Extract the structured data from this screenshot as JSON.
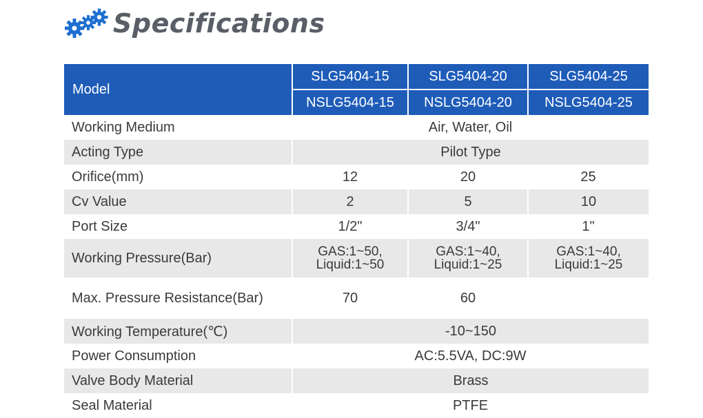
{
  "title": "Specifications",
  "header": {
    "label": "Model",
    "models_top": [
      "SLG5404-15",
      "SLG5404-20",
      "SLG5404-25"
    ],
    "models_bottom": [
      "NSLG5404-15",
      "NSLG5404-20",
      "NSLG5404-25"
    ]
  },
  "rows": {
    "working_medium": {
      "label": "Working Medium",
      "value": "Air, Water, Oil"
    },
    "acting_type": {
      "label": "Acting Type",
      "value": "Pilot Type"
    },
    "orifice": {
      "label": "Orifice(mm)",
      "values": [
        "12",
        "20",
        "25"
      ]
    },
    "cv_value": {
      "label": "Cv Value",
      "values": [
        "2",
        "5",
        "10"
      ]
    },
    "port_size": {
      "label": "Port Size",
      "values": [
        "1/2\"",
        "3/4\"",
        "1\""
      ]
    },
    "working_pressure": {
      "label": "Working Pressure(Bar)",
      "gas": [
        "GAS:1~50,",
        "GAS:1~40,",
        "GAS:1~40,"
      ],
      "liquid": [
        "Liquid:1~50",
        "Liquid:1~25",
        "Liquid:1~25"
      ]
    },
    "max_pressure": {
      "label": "Max. Pressure Resistance(Bar)",
      "values": [
        "70",
        "60"
      ]
    },
    "working_temperature": {
      "label": "Working Temperature(℃)",
      "value": "-10~150"
    },
    "power_consumption": {
      "label": "Power Consumption",
      "value": "AC:5.5VA, DC:9W"
    },
    "valve_body": {
      "label": "Valve Body Material",
      "value": "Brass"
    },
    "seal": {
      "label": "Seal Material",
      "value": "PTFE"
    }
  },
  "colors": {
    "header_blue": "#1e5cb8",
    "stripe_gray": "#e8e8e8",
    "icon_blue": "#1e6fd0"
  },
  "icons": [
    "gears-icon"
  ]
}
